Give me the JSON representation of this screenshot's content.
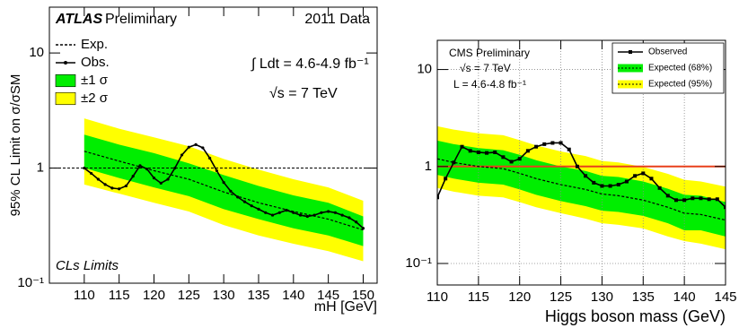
{
  "chart_data": [
    {
      "type": "line",
      "y_label": "95% CL Limit on σ/σSM",
      "x_label": "mH [GeV]",
      "annotations": [
        "ATLAS",
        "Preliminary",
        "2011 Data",
        "∫ Ldt = 4.6-4.9 fb⁻¹",
        "√s = 7 TeV",
        "CLs Limits"
      ],
      "xlim": [
        105,
        152
      ],
      "xticks": [
        110,
        115,
        120,
        125,
        130,
        135,
        140,
        145,
        150
      ],
      "ylim": [
        0.1,
        25
      ],
      "yticks": [
        {
          "value": 0.1,
          "label": "10⁻¹"
        },
        1,
        10
      ],
      "log_y": true,
      "grid": false,
      "hline": 1,
      "hline_color": "#000000",
      "hline_dash": true,
      "series": [
        {
          "name": "±2 σ",
          "kind": "band",
          "color": "#ffff00",
          "x": [
            110,
            115,
            120,
            125,
            130,
            135,
            140,
            145,
            150
          ],
          "upper": [
            2.7,
            2.2,
            1.85,
            1.55,
            1.2,
            0.97,
            0.8,
            0.68,
            0.52
          ],
          "lower": [
            0.72,
            0.6,
            0.5,
            0.42,
            0.32,
            0.26,
            0.22,
            0.19,
            0.155
          ]
        },
        {
          "name": "±1 σ",
          "kind": "band",
          "color": "#00ee00",
          "x": [
            110,
            115,
            120,
            125,
            130,
            135,
            140,
            145,
            150
          ],
          "upper": [
            1.95,
            1.6,
            1.35,
            1.1,
            0.87,
            0.7,
            0.58,
            0.5,
            0.38
          ],
          "lower": [
            1.0,
            0.82,
            0.68,
            0.57,
            0.44,
            0.36,
            0.3,
            0.26,
            0.21
          ]
        },
        {
          "name": "Exp.",
          "kind": "line",
          "dash": true,
          "color": "#000000",
          "x": [
            110,
            115,
            120,
            125,
            130,
            135,
            140,
            145,
            150
          ],
          "values": [
            1.4,
            1.15,
            0.95,
            0.8,
            0.62,
            0.5,
            0.42,
            0.36,
            0.29
          ]
        },
        {
          "name": "Obs.",
          "kind": "line",
          "marker": "circle",
          "color": "#000000",
          "x": [
            110,
            111,
            112,
            113,
            114,
            115,
            116,
            117,
            118,
            119,
            120,
            121,
            122,
            123,
            124,
            125,
            126,
            127,
            128,
            129,
            130,
            131,
            132,
            133,
            134,
            135,
            136,
            137,
            138,
            139,
            140,
            141,
            142,
            143,
            144,
            145,
            146,
            147,
            148,
            149,
            150
          ],
          "values": [
            1.0,
            0.9,
            0.8,
            0.72,
            0.67,
            0.66,
            0.7,
            0.85,
            1.05,
            0.98,
            0.82,
            0.74,
            0.8,
            1.0,
            1.3,
            1.52,
            1.6,
            1.5,
            1.22,
            0.95,
            0.75,
            0.63,
            0.56,
            0.51,
            0.47,
            0.44,
            0.41,
            0.39,
            0.41,
            0.43,
            0.41,
            0.39,
            0.38,
            0.39,
            0.41,
            0.42,
            0.41,
            0.39,
            0.37,
            0.34,
            0.3
          ]
        }
      ]
    },
    {
      "type": "line",
      "x_label": "Higgs boson mass (GeV)",
      "annotations": [
        "CMS Preliminary",
        "√s = 7 TeV",
        "L = 4.6-4.8 fb⁻¹"
      ],
      "xlim": [
        110,
        145
      ],
      "xticks": [
        110,
        115,
        120,
        125,
        130,
        135,
        140,
        145
      ],
      "ylim": [
        0.06,
        20
      ],
      "yticks": [
        {
          "value": 0.1,
          "label": "10⁻¹"
        },
        1,
        10
      ],
      "log_y": true,
      "grid": true,
      "hline": 1,
      "hline_color": "#e8401c",
      "hline_dash": false,
      "series": [
        {
          "name": "Expected (95%)",
          "kind": "band",
          "color": "#ffff00",
          "x": [
            110,
            112,
            115,
            118,
            120,
            122,
            125,
            128,
            130,
            132,
            135,
            138,
            140,
            142,
            145
          ],
          "upper": [
            2.6,
            2.4,
            2.2,
            2.1,
            1.87,
            1.65,
            1.43,
            1.28,
            1.14,
            1.1,
            0.99,
            0.84,
            0.73,
            0.7,
            0.62
          ],
          "lower": [
            0.6,
            0.55,
            0.5,
            0.48,
            0.43,
            0.38,
            0.33,
            0.29,
            0.26,
            0.25,
            0.23,
            0.19,
            0.17,
            0.16,
            0.14
          ]
        },
        {
          "name": "Expected (68%)",
          "kind": "band",
          "color": "#00ee00",
          "x": [
            110,
            112,
            115,
            118,
            120,
            122,
            125,
            128,
            130,
            132,
            135,
            138,
            140,
            142,
            145
          ],
          "upper": [
            1.85,
            1.7,
            1.55,
            1.47,
            1.32,
            1.16,
            1.0,
            0.9,
            0.8,
            0.78,
            0.7,
            0.59,
            0.51,
            0.5,
            0.43
          ],
          "lower": [
            0.82,
            0.75,
            0.68,
            0.65,
            0.58,
            0.51,
            0.44,
            0.39,
            0.35,
            0.34,
            0.31,
            0.26,
            0.22,
            0.22,
            0.19
          ]
        },
        {
          "kind": "line",
          "dash": true,
          "color": "#000000",
          "x": [
            110,
            112,
            115,
            118,
            120,
            122,
            125,
            128,
            130,
            132,
            135,
            138,
            140,
            142,
            145
          ],
          "values": [
            1.2,
            1.1,
            1.0,
            0.95,
            0.85,
            0.75,
            0.65,
            0.58,
            0.52,
            0.5,
            0.45,
            0.38,
            0.33,
            0.32,
            0.28
          ]
        },
        {
          "name": "Observed",
          "kind": "line",
          "marker": "square",
          "color": "#000000",
          "x": [
            110,
            111,
            112,
            113,
            114,
            115,
            116,
            117,
            118,
            119,
            120,
            121,
            122,
            123,
            124,
            125,
            126,
            127,
            128,
            129,
            130,
            131,
            132,
            133,
            134,
            135,
            136,
            137,
            138,
            139,
            140,
            141,
            142,
            143,
            144,
            145
          ],
          "values": [
            0.48,
            0.75,
            1.1,
            1.6,
            1.45,
            1.4,
            1.38,
            1.4,
            1.25,
            1.12,
            1.2,
            1.45,
            1.6,
            1.7,
            1.75,
            1.75,
            1.5,
            1.0,
            0.8,
            0.68,
            0.63,
            0.63,
            0.65,
            0.7,
            0.8,
            0.85,
            0.75,
            0.6,
            0.5,
            0.45,
            0.45,
            0.47,
            0.47,
            0.46,
            0.46,
            0.38
          ]
        }
      ]
    }
  ]
}
